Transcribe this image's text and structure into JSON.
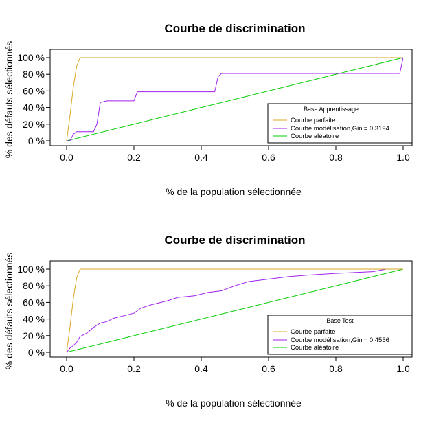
{
  "chart_data": [
    {
      "type": "line",
      "title": "Courbe de discrimination",
      "xlabel": "% de la population sélectionnée",
      "ylabel": "% des défauts sélectionnés",
      "xlim": [
        0,
        1
      ],
      "ylim": [
        0,
        100
      ],
      "xticks": [
        "0.0",
        "0.2",
        "0.4",
        "0.6",
        "0.8",
        "1.0"
      ],
      "yticks": [
        "0 %",
        "20 %",
        "40 %",
        "60 %",
        "80 %",
        "100 %"
      ],
      "legend": {
        "title": "Base Apprentissage",
        "position": "bottom-right"
      },
      "series": [
        {
          "name": "Courbe parfaite",
          "color": "#DAA520",
          "points": [
            [
              0,
              0
            ],
            [
              0.01,
              30
            ],
            [
              0.02,
              65
            ],
            [
              0.03,
              90
            ],
            [
              0.04,
              100
            ],
            [
              1,
              100
            ]
          ]
        },
        {
          "name": "Courbe modélisation,Gini= 0.3194",
          "color": "#A020F0",
          "points": [
            [
              0,
              0
            ],
            [
              0.01,
              0
            ],
            [
              0.02,
              8
            ],
            [
              0.03,
              11
            ],
            [
              0.08,
              11
            ],
            [
              0.09,
              20
            ],
            [
              0.1,
              46
            ],
            [
              0.12,
              48
            ],
            [
              0.2,
              48
            ],
            [
              0.21,
              59
            ],
            [
              0.44,
              59
            ],
            [
              0.45,
              77
            ],
            [
              0.46,
              81
            ],
            [
              0.99,
              81
            ],
            [
              1,
              100
            ]
          ]
        },
        {
          "name": "Courbe aléatoire",
          "color": "#00CD00",
          "points": [
            [
              0,
              0
            ],
            [
              1,
              100
            ]
          ]
        }
      ]
    },
    {
      "type": "line",
      "title": "Courbe de discrimination",
      "xlabel": "% de la population sélectionnée",
      "ylabel": "% des défauts sélectionnés",
      "xlim": [
        0,
        1
      ],
      "ylim": [
        0,
        100
      ],
      "xticks": [
        "0.0",
        "0.2",
        "0.4",
        "0.6",
        "0.8",
        "1.0"
      ],
      "yticks": [
        "0 %",
        "20 %",
        "40 %",
        "60 %",
        "80 %",
        "100 %"
      ],
      "legend": {
        "title": "Base Test",
        "position": "bottom-right"
      },
      "series": [
        {
          "name": "Courbe parfaite",
          "color": "#DAA520",
          "points": [
            [
              0,
              0
            ],
            [
              0.01,
              30
            ],
            [
              0.02,
              65
            ],
            [
              0.03,
              90
            ],
            [
              0.04,
              100
            ],
            [
              1,
              100
            ]
          ]
        },
        {
          "name": "Courbe modélisation,Gini= 0.4556",
          "color": "#A020F0",
          "points": [
            [
              0,
              0
            ],
            [
              0.01,
              5
            ],
            [
              0.02,
              8
            ],
            [
              0.03,
              12
            ],
            [
              0.04,
              19
            ],
            [
              0.06,
              23
            ],
            [
              0.08,
              30
            ],
            [
              0.1,
              35
            ],
            [
              0.12,
              37
            ],
            [
              0.14,
              41
            ],
            [
              0.17,
              44
            ],
            [
              0.2,
              47
            ],
            [
              0.22,
              53
            ],
            [
              0.25,
              57
            ],
            [
              0.3,
              62
            ],
            [
              0.33,
              66
            ],
            [
              0.38,
              68
            ],
            [
              0.42,
              72
            ],
            [
              0.46,
              74
            ],
            [
              0.5,
              80
            ],
            [
              0.54,
              85
            ],
            [
              0.6,
              88
            ],
            [
              0.66,
              91
            ],
            [
              0.72,
              93
            ],
            [
              0.8,
              95
            ],
            [
              0.86,
              96
            ],
            [
              0.91,
              97
            ],
            [
              0.95,
              100
            ],
            [
              1,
              100
            ]
          ]
        },
        {
          "name": "Courbe aléatoire",
          "color": "#00CD00",
          "points": [
            [
              0,
              0
            ],
            [
              1,
              100
            ]
          ]
        }
      ]
    }
  ]
}
